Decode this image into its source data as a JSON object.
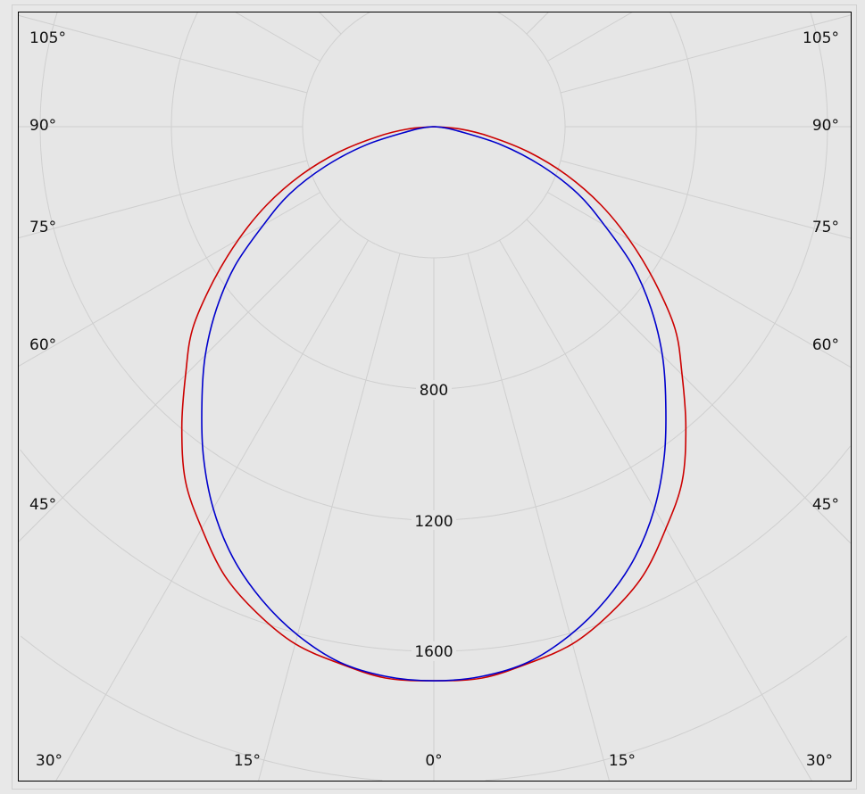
{
  "chart_data": {
    "type": "polar-line",
    "angle_unit": "degrees",
    "radial_ticks": [
      800,
      1200,
      1600
    ],
    "radial_grid": [
      400,
      800,
      1200,
      1600,
      2000,
      2400,
      2800
    ],
    "angular_grid_step": 15,
    "angle_labels_left": [
      "105°",
      "90°",
      "75°",
      "60°",
      "45°",
      "30°",
      "15°"
    ],
    "angle_label_bottom": "0°",
    "angle_labels_right": [
      "15°",
      "30°",
      "45°",
      "60°",
      "75°",
      "90°",
      "105°"
    ],
    "grid": true,
    "symmetric": true,
    "angles": [
      0,
      5,
      10,
      15,
      20,
      25,
      30,
      35,
      40,
      45,
      50,
      55,
      60,
      65,
      70,
      75,
      80,
      85,
      90
    ],
    "series": [
      {
        "color": "#cc0000",
        "values": [
          1690,
          1688,
          1662,
          1633,
          1578,
          1510,
          1415,
          1320,
          1195,
          1070,
          960,
          820,
          687,
          560,
          430,
          300,
          175,
          80,
          0
        ]
      },
      {
        "color": "#0000cc",
        "values": [
          1690,
          1683,
          1658,
          1605,
          1535,
          1450,
          1345,
          1225,
          1100,
          985,
          865,
          740,
          600,
          485,
          350,
          212,
          75,
          25,
          0
        ]
      }
    ]
  }
}
